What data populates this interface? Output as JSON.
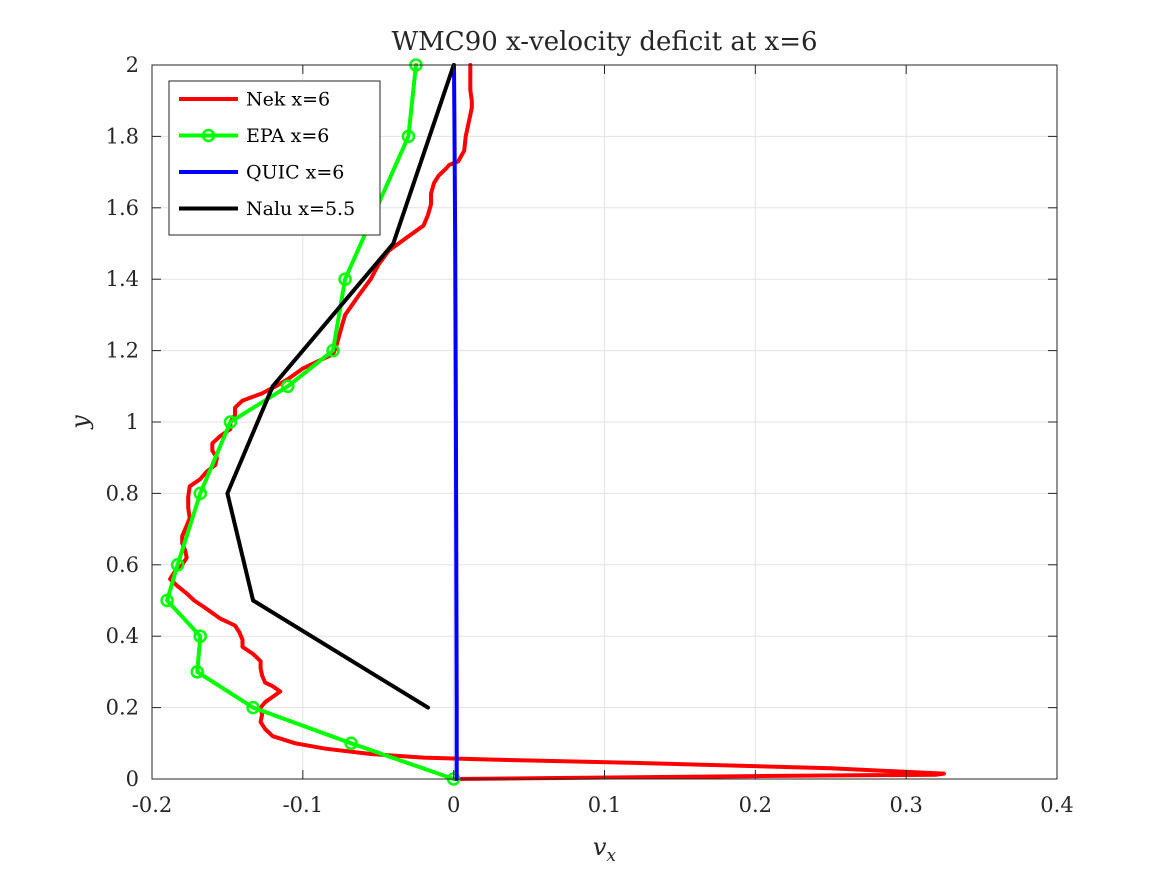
{
  "chart_data": {
    "type": "line",
    "title": "WMC90 x-velocity deficit at x=6",
    "xlabel": "v",
    "xlabel_sub": "x",
    "ylabel": "y",
    "xlim": [
      -0.2,
      0.4
    ],
    "ylim": [
      0,
      2
    ],
    "xticks": [
      -0.2,
      -0.1,
      0,
      0.1,
      0.2,
      0.3,
      0.4
    ],
    "xtick_labels": [
      "-0.2",
      "-0.1",
      "0",
      "0.1",
      "0.2",
      "0.3",
      "0.4"
    ],
    "yticks": [
      0,
      0.2,
      0.4,
      0.6,
      0.8,
      1,
      1.2,
      1.4,
      1.6,
      1.8,
      2
    ],
    "ytick_labels": [
      "0",
      "0.2",
      "0.4",
      "0.6",
      "0.8",
      "1",
      "1.2",
      "1.4",
      "1.6",
      "1.8",
      "2"
    ],
    "grid": true,
    "legend_position": "top-left",
    "series": [
      {
        "name": "Nek x=6",
        "color": "#ff0000",
        "marker": "none",
        "points": [
          [
            0.001,
            0.0
          ],
          [
            0.2,
            0.008
          ],
          [
            0.32,
            0.012
          ],
          [
            0.325,
            0.015
          ],
          [
            0.25,
            0.03
          ],
          [
            0.12,
            0.045
          ],
          [
            0.02,
            0.055
          ],
          [
            -0.02,
            0.06
          ],
          [
            -0.055,
            0.07
          ],
          [
            -0.085,
            0.085
          ],
          [
            -0.105,
            0.1
          ],
          [
            -0.12,
            0.12
          ],
          [
            -0.125,
            0.14
          ],
          [
            -0.128,
            0.16
          ],
          [
            -0.127,
            0.18
          ],
          [
            -0.128,
            0.2
          ],
          [
            -0.125,
            0.215
          ],
          [
            -0.12,
            0.23
          ],
          [
            -0.115,
            0.245
          ],
          [
            -0.12,
            0.26
          ],
          [
            -0.125,
            0.27
          ],
          [
            -0.127,
            0.29
          ],
          [
            -0.128,
            0.31
          ],
          [
            -0.128,
            0.33
          ],
          [
            -0.133,
            0.35
          ],
          [
            -0.14,
            0.37
          ],
          [
            -0.14,
            0.39
          ],
          [
            -0.142,
            0.41
          ],
          [
            -0.145,
            0.43
          ],
          [
            -0.155,
            0.45
          ],
          [
            -0.165,
            0.48
          ],
          [
            -0.172,
            0.5
          ],
          [
            -0.177,
            0.52
          ],
          [
            -0.183,
            0.54
          ],
          [
            -0.188,
            0.56
          ],
          [
            -0.185,
            0.58
          ],
          [
            -0.18,
            0.6
          ],
          [
            -0.177,
            0.62
          ],
          [
            -0.178,
            0.64
          ],
          [
            -0.18,
            0.66
          ],
          [
            -0.18,
            0.68
          ],
          [
            -0.178,
            0.7
          ],
          [
            -0.175,
            0.73
          ],
          [
            -0.176,
            0.76
          ],
          [
            -0.176,
            0.79
          ],
          [
            -0.175,
            0.82
          ],
          [
            -0.168,
            0.84
          ],
          [
            -0.164,
            0.86
          ],
          [
            -0.158,
            0.88
          ],
          [
            -0.157,
            0.9
          ],
          [
            -0.16,
            0.92
          ],
          [
            -0.16,
            0.94
          ],
          [
            -0.155,
            0.96
          ],
          [
            -0.148,
            0.98
          ],
          [
            -0.148,
            1.0
          ],
          [
            -0.145,
            1.02
          ],
          [
            -0.145,
            1.04
          ],
          [
            -0.14,
            1.06
          ],
          [
            -0.127,
            1.08
          ],
          [
            -0.118,
            1.1
          ],
          [
            -0.11,
            1.12
          ],
          [
            -0.1,
            1.15
          ],
          [
            -0.09,
            1.17
          ],
          [
            -0.08,
            1.19
          ],
          [
            -0.078,
            1.21
          ],
          [
            -0.076,
            1.24
          ],
          [
            -0.074,
            1.27
          ],
          [
            -0.072,
            1.3
          ],
          [
            -0.067,
            1.33
          ],
          [
            -0.062,
            1.36
          ],
          [
            -0.055,
            1.4
          ],
          [
            -0.05,
            1.44
          ],
          [
            -0.043,
            1.48
          ],
          [
            -0.03,
            1.52
          ],
          [
            -0.02,
            1.55
          ],
          [
            -0.017,
            1.58
          ],
          [
            -0.015,
            1.61
          ],
          [
            -0.015,
            1.64
          ],
          [
            -0.013,
            1.67
          ],
          [
            -0.01,
            1.69
          ],
          [
            -0.005,
            1.71
          ],
          [
            -0.003,
            1.72
          ],
          [
            0.003,
            1.73
          ],
          [
            0.007,
            1.76
          ],
          [
            0.008,
            1.8
          ],
          [
            0.01,
            1.84
          ],
          [
            0.012,
            1.88
          ],
          [
            0.012,
            1.9
          ],
          [
            0.011,
            1.93
          ],
          [
            0.011,
            1.96
          ],
          [
            0.011,
            2.0
          ]
        ]
      },
      {
        "name": "EPA x=6",
        "color": "#00ff00",
        "marker": "circle",
        "points": [
          [
            0.0,
            0.0
          ],
          [
            -0.068,
            0.1
          ],
          [
            -0.133,
            0.2
          ],
          [
            -0.17,
            0.3
          ],
          [
            -0.168,
            0.4
          ],
          [
            -0.19,
            0.5
          ],
          [
            -0.183,
            0.6
          ],
          [
            -0.168,
            0.8
          ],
          [
            -0.148,
            1.0
          ],
          [
            -0.11,
            1.1
          ],
          [
            -0.08,
            1.2
          ],
          [
            -0.072,
            1.4
          ],
          [
            -0.03,
            1.8
          ],
          [
            -0.025,
            2.0
          ]
        ]
      },
      {
        "name": "QUIC x=6",
        "color": "#0000ff",
        "marker": "none",
        "points": [
          [
            0.002,
            0.0
          ],
          [
            0.002,
            0.2
          ],
          [
            0.0018,
            0.5
          ],
          [
            0.0015,
            1.0
          ],
          [
            0.001,
            1.5
          ],
          [
            0.0005,
            1.85
          ],
          [
            0.0002,
            2.0
          ]
        ]
      },
      {
        "name": "Nalu x=5.5",
        "color": "#000000",
        "marker": "none",
        "points": [
          [
            -0.017,
            0.2
          ],
          [
            -0.133,
            0.5
          ],
          [
            -0.15,
            0.8
          ],
          [
            -0.12,
            1.1
          ],
          [
            -0.04,
            1.5
          ],
          [
            0.0,
            2.0
          ]
        ]
      }
    ]
  }
}
